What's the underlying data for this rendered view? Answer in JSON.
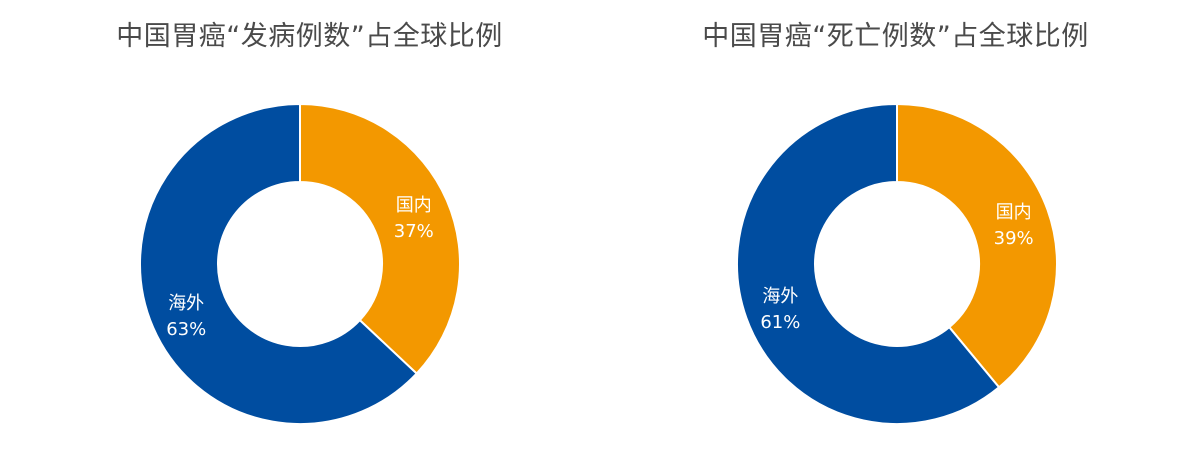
{
  "chart_data": [
    {
      "type": "pie",
      "title": "中国胃癌“发病例数”占全球比例",
      "slices": [
        {
          "name": "国内",
          "value": 37,
          "label": "37%",
          "color": "#F39800"
        },
        {
          "name": "海外",
          "value": 63,
          "label": "63%",
          "color": "#004DA0"
        }
      ]
    },
    {
      "type": "pie",
      "title": "中国胃癌“死亡例数”占全球比例",
      "slices": [
        {
          "name": "国内",
          "value": 39,
          "label": "39%",
          "color": "#F39800"
        },
        {
          "name": "海外",
          "value": 61,
          "label": "61%",
          "color": "#004DA0"
        }
      ]
    }
  ]
}
